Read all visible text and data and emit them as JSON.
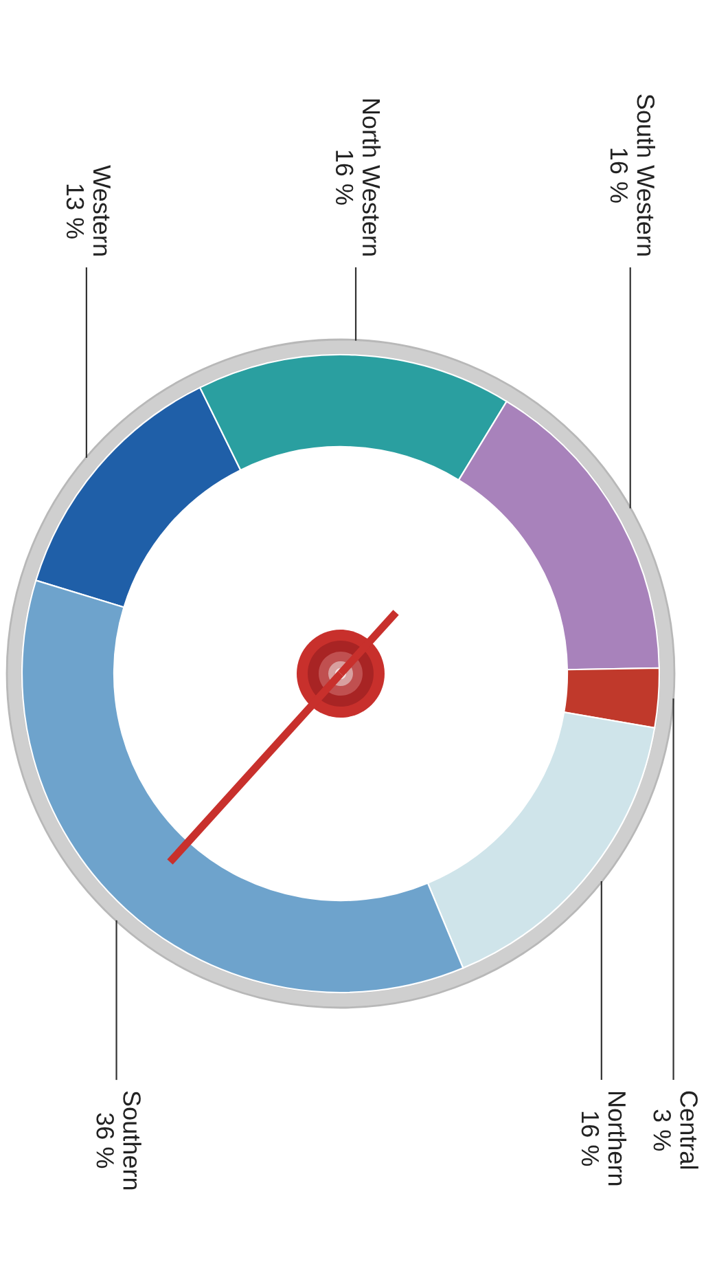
{
  "chart_data": {
    "type": "donut",
    "categories": [
      "Western",
      "North Western",
      "South Western",
      "Central",
      "Northern",
      "Southern"
    ],
    "values": [
      13,
      16,
      16,
      3,
      16,
      36
    ],
    "colors": [
      "#1f5fa8",
      "#2a9fa0",
      "#a882bb",
      "#c0392b",
      "#cfe4ea",
      "#6ea3cc"
    ],
    "value_labels": [
      "13 %",
      "16 %",
      "16 %",
      "3 %",
      "16 %",
      "36 %"
    ],
    "needle": "Southern"
  }
}
